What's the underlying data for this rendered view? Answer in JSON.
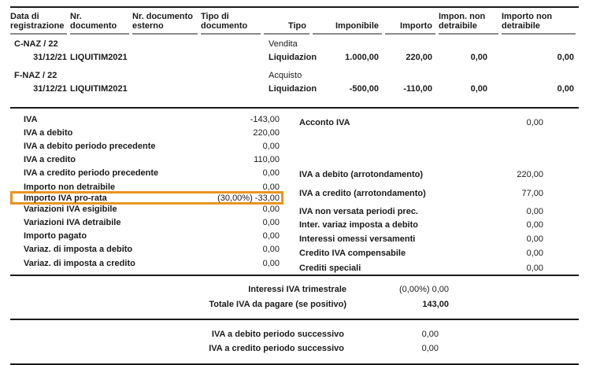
{
  "highlight_color": "#E8951F",
  "table": {
    "columns": [
      {
        "label": "Data di\nregistrazione"
      },
      {
        "label": "Nr. documento"
      },
      {
        "label": "Nr. documento\nesterno"
      },
      {
        "label": "Tipo di\ndocumento"
      },
      {
        "label": "Tipo"
      },
      {
        "label": "Imponibile"
      },
      {
        "label": "Importo"
      },
      {
        "label": "Impon. non\ndetraibile"
      },
      {
        "label": "Importo non\ndetraibile"
      }
    ],
    "groups": [
      {
        "code": "C-NAZ / 22",
        "tipo": "Vendita",
        "doc": {
          "data_registrazione": "31/12/21",
          "nr_documento": "LIQUITIM2021",
          "tipo_documento": "Liquidazion",
          "imponibile": "1.000,00",
          "importo": "220,00",
          "impon_non_detraibile": "0,00",
          "importo_non_detraibile": "0,00"
        }
      },
      {
        "code": "F-NAZ / 22",
        "tipo": "Acquisto",
        "doc": {
          "data_registrazione": "31/12/21",
          "nr_documento": "LIQUITIM2021",
          "tipo_documento": "Liquidazion",
          "imponibile": "-500,00",
          "importo": "-110,00",
          "impon_non_detraibile": "0,00",
          "importo_non_detraibile": "0,00"
        }
      }
    ]
  },
  "summary_left": {
    "rows": [
      {
        "label": "IVA",
        "value": "-143,00"
      },
      {
        "label": "IVA a debito",
        "value": "220,00"
      },
      {
        "label": "IVA a debito periodo precedente",
        "value": "0,00"
      },
      {
        "label": "IVA a credito",
        "value": "110,00"
      },
      {
        "label": "IVA a credito periodo precedente",
        "value": "0,00"
      },
      {
        "label": "Importo non detraibile",
        "value": "0,00"
      },
      {
        "label": "Importo IVA pro-rata",
        "value": "(30,00%) -33,00"
      },
      {
        "label": "Variazioni IVA esigibile",
        "value": "0,00"
      },
      {
        "label": "Variazioni IVA detraibile",
        "value": "0,00"
      },
      {
        "label": "Importo pagato",
        "value": "0,00"
      },
      {
        "label": "Variaz. di imposta a debito",
        "value": "0,00"
      },
      {
        "label": "Variaz. di imposta a credito",
        "value": "0,00"
      }
    ]
  },
  "summary_right": {
    "rows": [
      {
        "label": "Acconto IVA",
        "value": "0,00"
      },
      {
        "label": "IVA a debito (arrotondamento)",
        "value": "220,00"
      },
      {
        "label": "IVA a credito (arrotondamento)",
        "value": "77,00"
      },
      {
        "label": "IVA non versata periodi prec.",
        "value": "0,00"
      },
      {
        "label": "Inter. variaz imposta a debito",
        "value": "0,00"
      },
      {
        "label": "Interessi omessi versamenti",
        "value": "0,00"
      },
      {
        "label": "Credito IVA compensabile",
        "value": "0,00"
      },
      {
        "label": "Crediti speciali",
        "value": "0,00"
      }
    ]
  },
  "totals": {
    "rows": [
      {
        "label": "Interessi IVA trimestrale",
        "value": "(0,00%) 0,00"
      },
      {
        "label": "Totale IVA da pagare (se positivo)",
        "value": "143,00"
      }
    ]
  },
  "next_period": {
    "rows": [
      {
        "label": "IVA a debito periodo successivo",
        "value": "0,00"
      },
      {
        "label": "IVA a credito periodo successivo",
        "value": "0,00"
      }
    ]
  }
}
